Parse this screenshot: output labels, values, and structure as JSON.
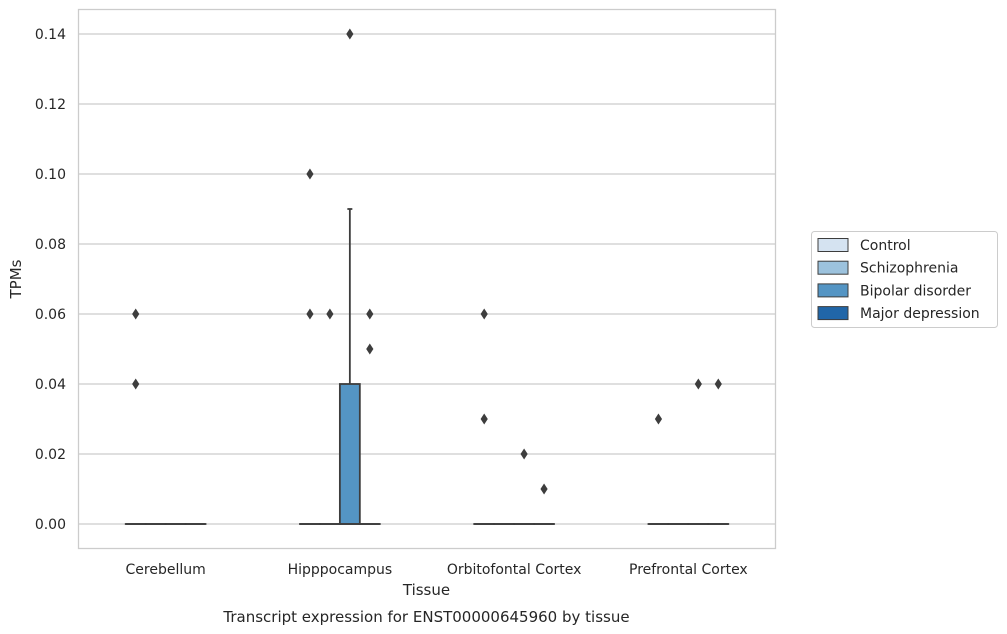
{
  "caption": "Transcript expression for ENST00000645960 by tissue",
  "chart_data": {
    "type": "box",
    "title": "",
    "xlabel": "Tissue",
    "ylabel": "TPMs",
    "ylim": [
      -0.007,
      0.147
    ],
    "yticks": [
      0.0,
      0.02,
      0.04,
      0.06,
      0.08,
      0.1,
      0.12,
      0.14
    ],
    "ytick_labels": [
      "0.00",
      "0.02",
      "0.04",
      "0.06",
      "0.08",
      "0.10",
      "0.12",
      "0.14"
    ],
    "grid": true,
    "legend_position": "right",
    "categories": [
      "Cerebellum",
      "Hipppocampus",
      "Orbitofontal Cortex",
      "Prefrontal Cortex"
    ],
    "series": [
      {
        "name": "Control",
        "color": "#d5e3f1",
        "boxes": [
          {
            "q1": 0,
            "median": 0,
            "q3": 0,
            "whisker_low": 0,
            "whisker_high": 0,
            "outliers": [
              0.06,
              0.04
            ]
          },
          {
            "q1": 0,
            "median": 0,
            "q3": 0,
            "whisker_low": 0,
            "whisker_high": 0,
            "outliers": [
              0.1,
              0.06
            ]
          },
          {
            "q1": 0,
            "median": 0,
            "q3": 0,
            "whisker_low": 0,
            "whisker_high": 0,
            "outliers": [
              0.06,
              0.03
            ]
          },
          {
            "q1": 0,
            "median": 0,
            "q3": 0,
            "whisker_low": 0,
            "whisker_high": 0,
            "outliers": [
              0.03
            ]
          }
        ]
      },
      {
        "name": "Schizophrenia",
        "color": "#9cc2dd",
        "boxes": [
          {
            "q1": 0,
            "median": 0,
            "q3": 0,
            "whisker_low": 0,
            "whisker_high": 0,
            "outliers": []
          },
          {
            "q1": 0,
            "median": 0,
            "q3": 0,
            "whisker_low": 0,
            "whisker_high": 0,
            "outliers": [
              0.06
            ]
          },
          {
            "q1": 0,
            "median": 0,
            "q3": 0,
            "whisker_low": 0,
            "whisker_high": 0,
            "outliers": []
          },
          {
            "q1": 0,
            "median": 0,
            "q3": 0,
            "whisker_low": 0,
            "whisker_high": 0,
            "outliers": []
          }
        ]
      },
      {
        "name": "Bipolar disorder",
        "color": "#5495c4",
        "boxes": [
          {
            "q1": 0,
            "median": 0,
            "q3": 0,
            "whisker_low": 0,
            "whisker_high": 0,
            "outliers": []
          },
          {
            "q1": 0,
            "median": 0,
            "q3": 0.04,
            "whisker_low": 0,
            "whisker_high": 0.09,
            "outliers": [
              0.14
            ]
          },
          {
            "q1": 0,
            "median": 0,
            "q3": 0,
            "whisker_low": 0,
            "whisker_high": 0,
            "outliers": [
              0.02
            ]
          },
          {
            "q1": 0,
            "median": 0,
            "q3": 0,
            "whisker_low": 0,
            "whisker_high": 0,
            "outliers": [
              0.04
            ]
          }
        ]
      },
      {
        "name": "Major depression",
        "color": "#2166a8",
        "boxes": [
          {
            "q1": 0,
            "median": 0,
            "q3": 0,
            "whisker_low": 0,
            "whisker_high": 0,
            "outliers": []
          },
          {
            "q1": 0,
            "median": 0,
            "q3": 0,
            "whisker_low": 0,
            "whisker_high": 0,
            "outliers": [
              0.06,
              0.05
            ]
          },
          {
            "q1": 0,
            "median": 0,
            "q3": 0,
            "whisker_low": 0,
            "whisker_high": 0,
            "outliers": [
              0.01
            ]
          },
          {
            "q1": 0,
            "median": 0,
            "q3": 0,
            "whisker_low": 0,
            "whisker_high": 0,
            "outliers": [
              0.04
            ]
          }
        ]
      }
    ]
  }
}
